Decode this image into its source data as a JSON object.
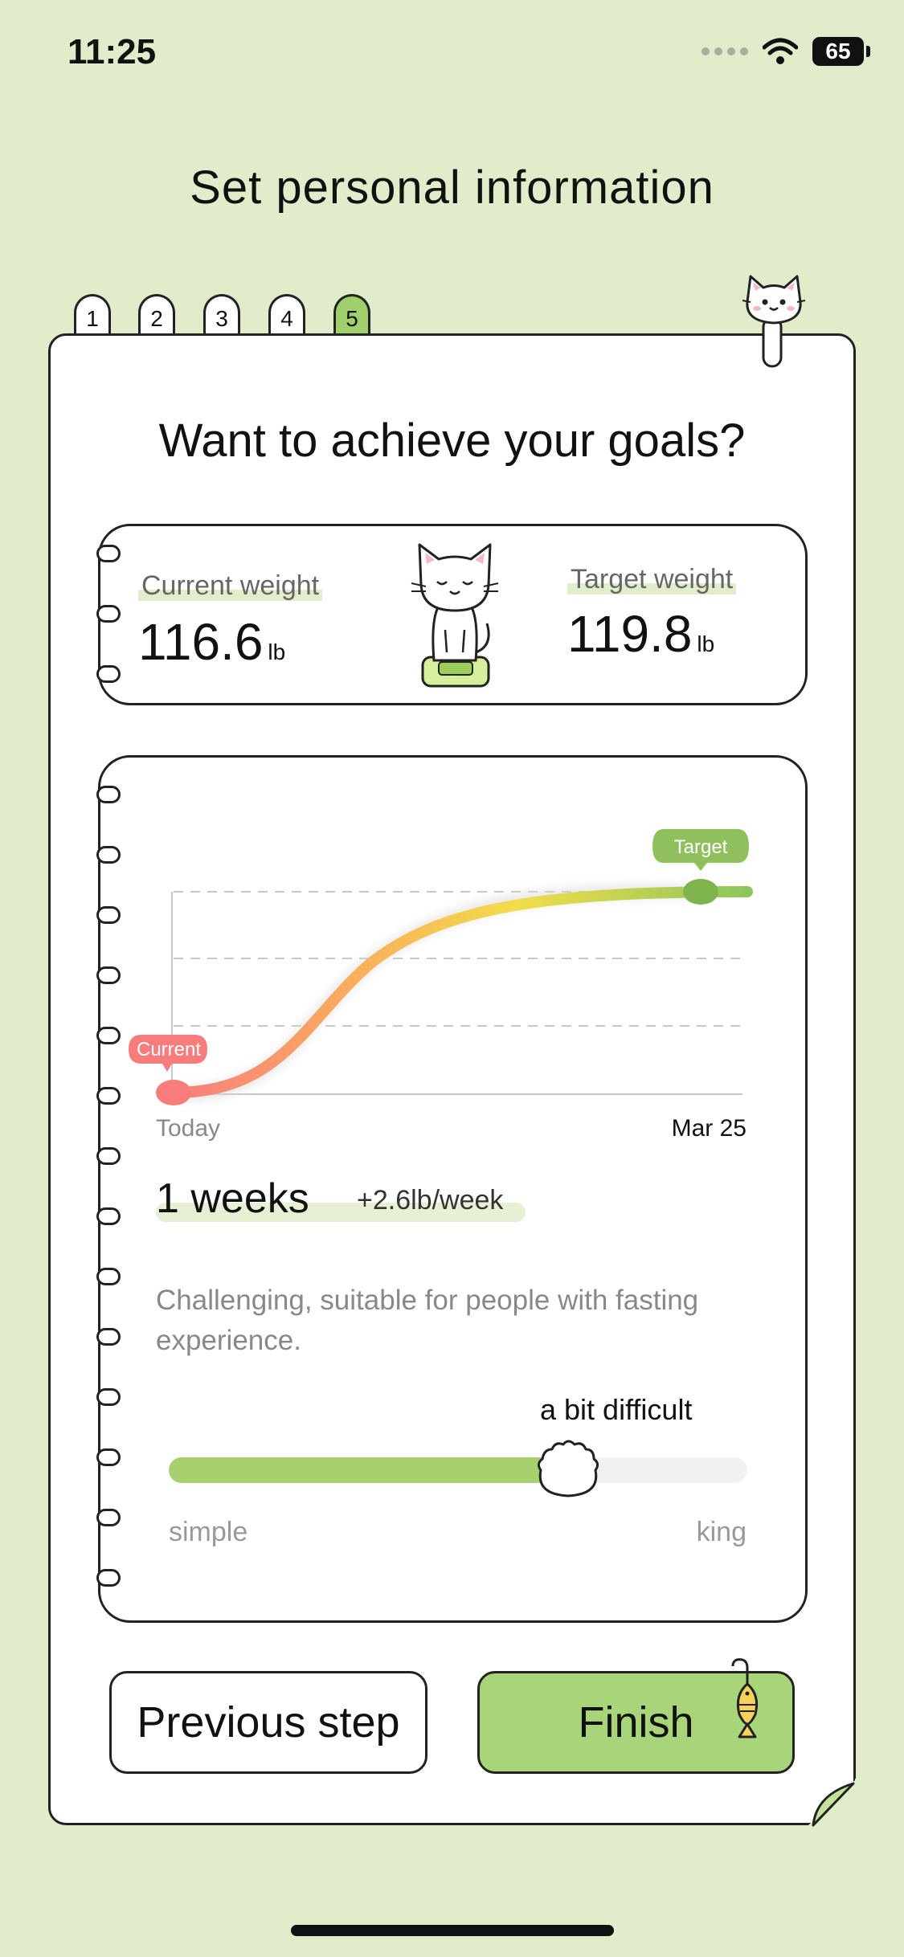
{
  "status_bar": {
    "time": "11:25",
    "battery": "65"
  },
  "page_title": "Set personal information",
  "steps": [
    {
      "label": "1",
      "active": false
    },
    {
      "label": "2",
      "active": false
    },
    {
      "label": "3",
      "active": false
    },
    {
      "label": "4",
      "active": false
    },
    {
      "label": "5",
      "active": true
    }
  ],
  "card": {
    "title": "Want to achieve your goals?",
    "current_weight": {
      "label": "Current weight",
      "value": "116.6",
      "unit": "lb"
    },
    "target_weight": {
      "label": "Target weight",
      "value": "119.8",
      "unit": "lb"
    }
  },
  "chart": {
    "current_tag": "Current",
    "target_tag": "Target",
    "x_start_label": "Today",
    "x_end_label": "Mar 25"
  },
  "plan": {
    "duration": "1 weeks",
    "rate": "+2.6lb/week",
    "description": "Challenging, suitable for people with fasting experience.",
    "difficulty_label": "a bit difficult",
    "difficulty_level": 0.69,
    "slider_min_label": "simple",
    "slider_max_label": "king"
  },
  "buttons": {
    "previous": "Previous step",
    "finish": "Finish"
  },
  "colors": {
    "background": "#e1eccb",
    "accent_green": "#a9d57a",
    "current_marker": "#f77d7d",
    "target_marker": "#7fb34e"
  }
}
